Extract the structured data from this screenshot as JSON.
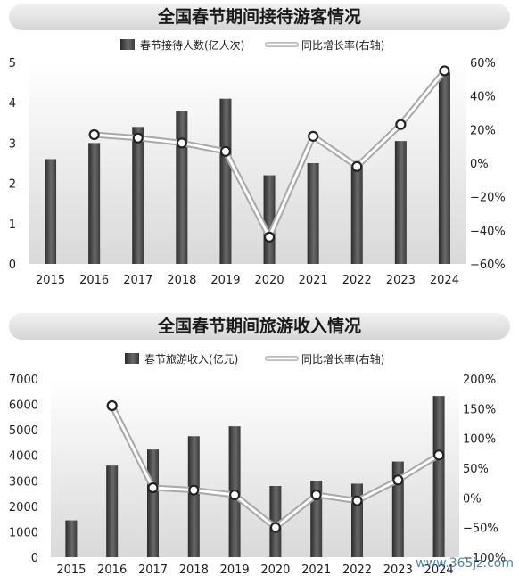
{
  "watermark": "www.365jz.com",
  "chart_data": [
    {
      "type": "bar",
      "title": "全国春节期间接待游客情况",
      "legend_placement": "top",
      "categories": [
        "2015",
        "2016",
        "2017",
        "2018",
        "2019",
        "2020",
        "2021",
        "2022",
        "2023",
        "2024"
      ],
      "series": [
        {
          "name": "春节接待人数(亿人次)",
          "type": "bar",
          "axis": "left",
          "values": [
            2.6,
            3.0,
            3.4,
            3.8,
            4.1,
            2.2,
            2.5,
            2.5,
            3.05,
            4.75
          ]
        },
        {
          "name": "同比增长率(右轴)",
          "type": "line",
          "axis": "right",
          "values": [
            null,
            17,
            15,
            12,
            7,
            -44,
            16,
            -2,
            23,
            55
          ]
        }
      ],
      "y_left": {
        "ylim": [
          0,
          5
        ],
        "ticks": [
          0,
          1,
          2,
          3,
          4,
          5
        ],
        "tick_labels": [
          "0",
          "1",
          "2",
          "3",
          "4",
          "5"
        ]
      },
      "y_right": {
        "ylim": [
          -60,
          60
        ],
        "ticks": [
          -60,
          -40,
          -20,
          0,
          20,
          40,
          60
        ],
        "tick_labels": [
          "−60%",
          "−40%",
          "−20%",
          "0%",
          "20%",
          "40%",
          "60%"
        ]
      },
      "grid": false
    },
    {
      "type": "bar",
      "title": "全国春节期间旅游收入情况",
      "legend_placement": "top",
      "categories": [
        "2015",
        "2016",
        "2017",
        "2018",
        "2019",
        "2020",
        "2021",
        "2022",
        "2023",
        "2024"
      ],
      "series": [
        {
          "name": "春节旅游收入(亿元)",
          "type": "bar",
          "axis": "left",
          "values": [
            1450,
            3600,
            4230,
            4750,
            5140,
            2800,
            3010,
            2890,
            3760,
            6330
          ]
        },
        {
          "name": "同比增长率(右轴)",
          "type": "line",
          "axis": "right",
          "values": [
            null,
            155,
            17,
            13,
            5,
            -50,
            5,
            -5,
            30,
            72
          ]
        }
      ],
      "y_left": {
        "ylim": [
          0,
          7000
        ],
        "ticks": [
          0,
          1000,
          2000,
          3000,
          4000,
          5000,
          6000,
          7000
        ],
        "tick_labels": [
          "0",
          "1000",
          "2000",
          "3000",
          "4000",
          "5000",
          "6000",
          "7000"
        ]
      },
      "y_right": {
        "ylim": [
          -100,
          200
        ],
        "ticks": [
          -100,
          -50,
          0,
          50,
          100,
          150,
          200
        ],
        "tick_labels": [
          "−100%",
          "−50%",
          "0%",
          "50%",
          "100%",
          "150%",
          "200%"
        ]
      },
      "grid": false
    }
  ]
}
